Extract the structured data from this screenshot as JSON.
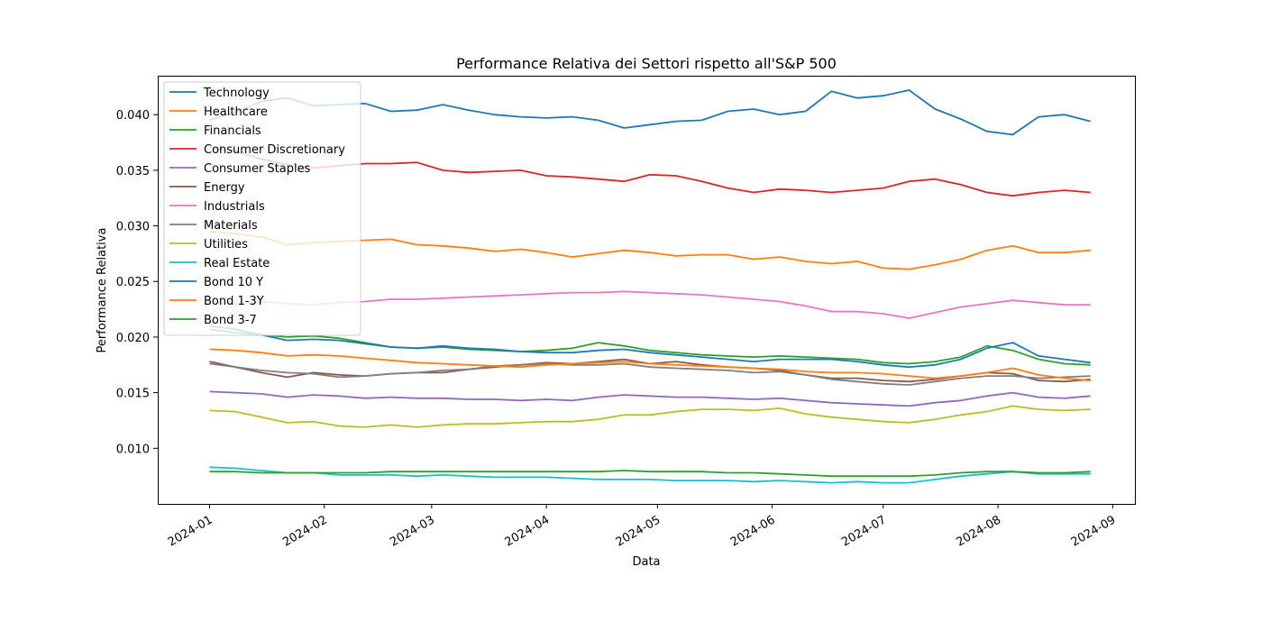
{
  "chart_data": {
    "type": "line",
    "title": "Performance Relativa dei Settori rispetto all'S&P 500",
    "xlabel": "Data",
    "ylabel": "Performance Relativa",
    "xlim": [
      "2023-12-18",
      "2024-09-07"
    ],
    "ylim": [
      0.005,
      0.0435
    ],
    "x_ticks": [
      "2024-01-01",
      "2024-02-01",
      "2024-03-01",
      "2024-04-01",
      "2024-05-01",
      "2024-06-01",
      "2024-07-01",
      "2024-08-01",
      "2024-09-01"
    ],
    "x_tick_labels": [
      "2024-01",
      "2024-02",
      "2024-03",
      "2024-04",
      "2024-05",
      "2024-06",
      "2024-07",
      "2024-08",
      "2024-09"
    ],
    "y_ticks": [
      0.01,
      0.015,
      0.02,
      0.025,
      0.03,
      0.035,
      0.04
    ],
    "y_tick_labels": [
      "0.010",
      "0.015",
      "0.020",
      "0.025",
      "0.030",
      "0.035",
      "0.040"
    ],
    "legend_position": "upper-left",
    "grid": false,
    "x": [
      "2024-01-01",
      "2024-01-08",
      "2024-01-15",
      "2024-01-22",
      "2024-01-29",
      "2024-02-05",
      "2024-02-12",
      "2024-02-19",
      "2024-02-26",
      "2024-03-04",
      "2024-03-11",
      "2024-03-18",
      "2024-03-25",
      "2024-04-01",
      "2024-04-08",
      "2024-04-15",
      "2024-04-22",
      "2024-04-29",
      "2024-05-06",
      "2024-05-13",
      "2024-05-20",
      "2024-05-27",
      "2024-06-03",
      "2024-06-10",
      "2024-06-17",
      "2024-06-24",
      "2024-07-01",
      "2024-07-08",
      "2024-07-15",
      "2024-07-22",
      "2024-07-29",
      "2024-08-05",
      "2024-08-12",
      "2024-08-19",
      "2024-08-26"
    ],
    "series": [
      {
        "name": "Technology",
        "color": "#1f77b4",
        "values": [
          0.0395,
          0.0402,
          0.0412,
          0.0415,
          0.0408,
          0.0409,
          0.041,
          0.0403,
          0.0404,
          0.0409,
          0.0404,
          0.04,
          0.0398,
          0.0397,
          0.0398,
          0.0395,
          0.0388,
          0.0391,
          0.0394,
          0.0395,
          0.0403,
          0.0405,
          0.04,
          0.0403,
          0.0421,
          0.0415,
          0.0417,
          0.0422,
          0.0405,
          0.0396,
          0.0385,
          0.0382,
          0.0398,
          0.04,
          0.0394
        ]
      },
      {
        "name": "Healthcare",
        "color": "#ff7f0e",
        "values": [
          0.0295,
          0.0293,
          0.029,
          0.0283,
          0.0285,
          0.0286,
          0.0287,
          0.0288,
          0.0283,
          0.0282,
          0.028,
          0.0277,
          0.0279,
          0.0276,
          0.0272,
          0.0275,
          0.0278,
          0.0276,
          0.0273,
          0.0274,
          0.0274,
          0.027,
          0.0272,
          0.0268,
          0.0266,
          0.0268,
          0.0262,
          0.0261,
          0.0265,
          0.027,
          0.0278,
          0.0282,
          0.0276,
          0.0276,
          0.0278
        ]
      },
      {
        "name": "Financials",
        "color": "#2ca02c",
        "values": [
          0.0207,
          0.0204,
          0.0202,
          0.02,
          0.0201,
          0.0199,
          0.0195,
          0.0191,
          0.019,
          0.0191,
          0.0189,
          0.0188,
          0.0187,
          0.0188,
          0.019,
          0.0195,
          0.0192,
          0.0188,
          0.0186,
          0.0184,
          0.0183,
          0.0182,
          0.0183,
          0.0182,
          0.0181,
          0.018,
          0.0177,
          0.0176,
          0.0178,
          0.0182,
          0.0192,
          0.0188,
          0.018,
          0.0176,
          0.0175
        ]
      },
      {
        "name": "Consumer Discretionary",
        "color": "#d62728",
        "values": [
          0.037,
          0.0367,
          0.036,
          0.0355,
          0.0352,
          0.0354,
          0.0356,
          0.0356,
          0.0357,
          0.035,
          0.0348,
          0.0349,
          0.035,
          0.0345,
          0.0344,
          0.0342,
          0.034,
          0.0346,
          0.0345,
          0.034,
          0.0334,
          0.033,
          0.0333,
          0.0332,
          0.033,
          0.0332,
          0.0334,
          0.034,
          0.0342,
          0.0337,
          0.033,
          0.0327,
          0.033,
          0.0332,
          0.033
        ]
      },
      {
        "name": "Consumer Staples",
        "color": "#9467bd",
        "values": [
          0.0151,
          0.015,
          0.0149,
          0.0146,
          0.0148,
          0.0147,
          0.0145,
          0.0146,
          0.0145,
          0.0145,
          0.0144,
          0.0144,
          0.0143,
          0.0144,
          0.0143,
          0.0146,
          0.0148,
          0.0147,
          0.0146,
          0.0146,
          0.0145,
          0.0144,
          0.0145,
          0.0143,
          0.0141,
          0.014,
          0.0139,
          0.0138,
          0.0141,
          0.0143,
          0.0147,
          0.015,
          0.0146,
          0.0145,
          0.0147
        ]
      },
      {
        "name": "Energy",
        "color": "#8c564b",
        "values": [
          0.0178,
          0.0173,
          0.0168,
          0.0164,
          0.0168,
          0.0166,
          0.0165,
          0.0167,
          0.0168,
          0.0168,
          0.0171,
          0.0173,
          0.0175,
          0.0177,
          0.0176,
          0.0178,
          0.018,
          0.0176,
          0.0178,
          0.0175,
          0.0173,
          0.0172,
          0.017,
          0.0166,
          0.0163,
          0.0163,
          0.0161,
          0.016,
          0.0162,
          0.0165,
          0.0168,
          0.0167,
          0.0161,
          0.016,
          0.0162
        ]
      },
      {
        "name": "Industrials",
        "color": "#e377c2",
        "values": [
          0.0232,
          0.023,
          0.0232,
          0.023,
          0.0229,
          0.0231,
          0.0232,
          0.0234,
          0.0234,
          0.0235,
          0.0236,
          0.0237,
          0.0238,
          0.0239,
          0.024,
          0.024,
          0.0241,
          0.024,
          0.0239,
          0.0238,
          0.0236,
          0.0234,
          0.0232,
          0.0228,
          0.0223,
          0.0223,
          0.0221,
          0.0217,
          0.0222,
          0.0227,
          0.023,
          0.0233,
          0.0231,
          0.0229,
          0.0229
        ]
      },
      {
        "name": "Materials",
        "color": "#7f7f7f",
        "values": [
          0.0176,
          0.0173,
          0.017,
          0.0168,
          0.0167,
          0.0164,
          0.0165,
          0.0167,
          0.0168,
          0.017,
          0.0171,
          0.0174,
          0.0175,
          0.0176,
          0.0175,
          0.0175,
          0.0176,
          0.0173,
          0.0172,
          0.0171,
          0.017,
          0.0168,
          0.0169,
          0.0166,
          0.0162,
          0.016,
          0.0158,
          0.0157,
          0.016,
          0.0163,
          0.0165,
          0.0165,
          0.0163,
          0.0164,
          0.0165
        ]
      },
      {
        "name": "Utilities",
        "color": "#bcbd22",
        "values": [
          0.0134,
          0.0133,
          0.0128,
          0.0123,
          0.0124,
          0.012,
          0.0119,
          0.0121,
          0.0119,
          0.0121,
          0.0122,
          0.0122,
          0.0123,
          0.0124,
          0.0124,
          0.0126,
          0.013,
          0.013,
          0.0133,
          0.0135,
          0.0135,
          0.0134,
          0.0136,
          0.0131,
          0.0128,
          0.0126,
          0.0124,
          0.0123,
          0.0126,
          0.013,
          0.0133,
          0.0138,
          0.0135,
          0.0134,
          0.0135
        ]
      },
      {
        "name": "Real Estate",
        "color": "#17becf",
        "values": [
          0.0083,
          0.0082,
          0.008,
          0.0078,
          0.0078,
          0.0076,
          0.0076,
          0.0076,
          0.0075,
          0.0076,
          0.0075,
          0.0074,
          0.0074,
          0.0074,
          0.0073,
          0.0072,
          0.0072,
          0.0072,
          0.0071,
          0.0071,
          0.0071,
          0.007,
          0.0071,
          0.007,
          0.0069,
          0.007,
          0.0069,
          0.0069,
          0.0072,
          0.0075,
          0.0077,
          0.0079,
          0.0077,
          0.0077,
          0.0077
        ]
      },
      {
        "name": "Bond 10 Y",
        "color": "#1f77b4",
        "values": [
          0.021,
          0.0207,
          0.0202,
          0.0197,
          0.0198,
          0.0197,
          0.0194,
          0.0191,
          0.019,
          0.0192,
          0.019,
          0.0189,
          0.0187,
          0.0186,
          0.0186,
          0.0188,
          0.0189,
          0.0186,
          0.0184,
          0.0182,
          0.018,
          0.0178,
          0.018,
          0.018,
          0.018,
          0.0178,
          0.0175,
          0.0173,
          0.0175,
          0.018,
          0.019,
          0.0195,
          0.0183,
          0.018,
          0.0177
        ]
      },
      {
        "name": "Bond 1-3Y",
        "color": "#ff7f0e",
        "values": [
          0.0189,
          0.0188,
          0.0186,
          0.0183,
          0.0184,
          0.0183,
          0.0181,
          0.0179,
          0.0177,
          0.0176,
          0.0175,
          0.0174,
          0.0173,
          0.0175,
          0.0176,
          0.0177,
          0.0178,
          0.0176,
          0.0175,
          0.0174,
          0.0173,
          0.0172,
          0.0171,
          0.0169,
          0.0168,
          0.0168,
          0.0167,
          0.0165,
          0.0163,
          0.0165,
          0.0168,
          0.0172,
          0.0166,
          0.0163,
          0.0161
        ]
      },
      {
        "name": "Bond 3-7",
        "color": "#2ca02c",
        "values": [
          0.0079,
          0.0079,
          0.0078,
          0.0078,
          0.0078,
          0.0078,
          0.0078,
          0.0079,
          0.0079,
          0.0079,
          0.0079,
          0.0079,
          0.0079,
          0.0079,
          0.0079,
          0.0079,
          0.008,
          0.0079,
          0.0079,
          0.0079,
          0.0078,
          0.0078,
          0.0077,
          0.0076,
          0.0075,
          0.0075,
          0.0075,
          0.0075,
          0.0076,
          0.0078,
          0.0079,
          0.0079,
          0.0078,
          0.0078,
          0.0079
        ]
      }
    ]
  }
}
